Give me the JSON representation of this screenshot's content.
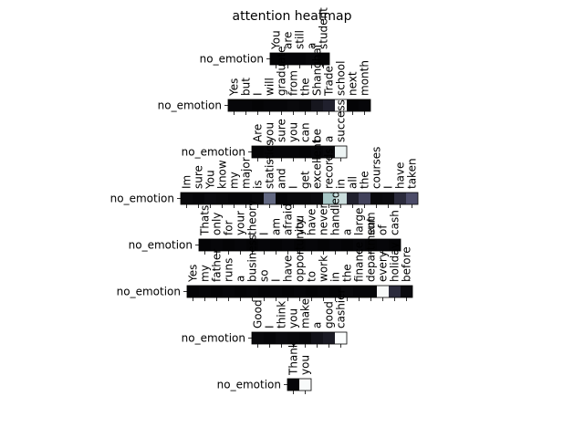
{
  "chart_data": {
    "type": "heatmap",
    "title": "attention heatmap",
    "colormap": "bone",
    "rows": [
      {
        "label": "no_emotion",
        "tokens": [
          "You",
          "are",
          "still",
          "a",
          "student"
        ],
        "weights": [
          0.02,
          0.03,
          0.03,
          0.04,
          0.02
        ]
      },
      {
        "label": "no_emotion",
        "tokens": [
          "Yes",
          "but",
          "I",
          "will",
          "graduate",
          "from",
          "the",
          "Shanghai",
          "Trade",
          "school",
          "next",
          "month"
        ],
        "weights": [
          0.03,
          0.03,
          0.02,
          0.03,
          0.03,
          0.04,
          0.03,
          0.1,
          0.15,
          1.0,
          0.02,
          0.03
        ]
      },
      {
        "label": "no_emotion",
        "tokens": [
          "Are",
          "you",
          "sure",
          "you",
          "can",
          "be",
          "a",
          "success"
        ],
        "weights": [
          0.02,
          0.03,
          0.03,
          0.03,
          0.02,
          0.03,
          0.04,
          0.95
        ]
      },
      {
        "label": "no_emotion",
        "tokens": [
          "Im",
          "sure",
          "You",
          "know",
          "my",
          "major",
          "is",
          "statistics",
          "and",
          "I",
          "get",
          "excellent",
          "records",
          "in",
          "all",
          "the",
          "courses",
          "I",
          "have",
          "taken"
        ],
        "weights": [
          0.04,
          0.03,
          0.05,
          0.04,
          0.03,
          0.03,
          0.04,
          0.45,
          0.03,
          0.04,
          0.04,
          0.05,
          0.75,
          0.85,
          0.15,
          0.3,
          0.04,
          0.05,
          0.2,
          0.35
        ]
      },
      {
        "label": "no_emotion",
        "tokens": [
          "Thats",
          "only",
          "for",
          "your",
          "theory",
          "I",
          "am",
          "afraid",
          "you",
          "have",
          "never",
          "handled",
          "a",
          "large",
          "sum",
          "of",
          "cash"
        ],
        "weights": [
          0.02,
          0.03,
          0.02,
          0.03,
          0.02,
          0.03,
          0.02,
          0.03,
          0.02,
          0.03,
          0.02,
          0.03,
          0.02,
          0.03,
          0.02,
          0.03,
          0.02
        ]
      },
      {
        "label": "no_emotion",
        "tokens": [
          "Yes",
          "my",
          "father",
          "runs",
          "a",
          "business",
          "so",
          "I",
          "have",
          "opportunity",
          "to",
          "work",
          "in",
          "the",
          "finance",
          "department",
          "every",
          "holiday",
          "before"
        ],
        "weights": [
          0.02,
          0.03,
          0.02,
          0.03,
          0.02,
          0.03,
          0.02,
          0.03,
          0.02,
          0.03,
          0.02,
          0.03,
          0.02,
          0.04,
          0.03,
          0.03,
          0.98,
          0.2,
          0.05
        ]
      },
      {
        "label": "no_emotion",
        "tokens": [
          "Good",
          "I",
          "think",
          "you",
          "make",
          "a",
          "good",
          "cashier"
        ],
        "weights": [
          0.04,
          0.03,
          0.05,
          0.04,
          0.03,
          0.08,
          0.12,
          0.99
        ]
      },
      {
        "label": "no_emotion",
        "tokens": [
          "Thank",
          "you"
        ],
        "weights": [
          0.03,
          0.98
        ]
      }
    ]
  }
}
